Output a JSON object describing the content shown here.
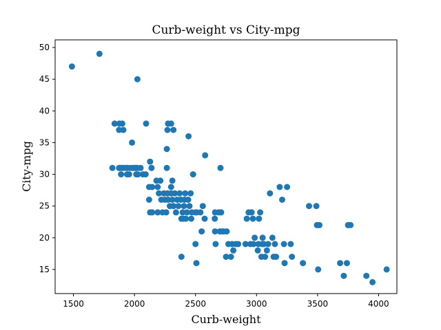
{
  "chart_data": {
    "type": "scatter",
    "title": "Curb-weight vs City-mpg",
    "xlabel": "Curb-weight",
    "ylabel": "City-mpg",
    "xlim": [
      1350,
      4150
    ],
    "ylim": [
      11.2,
      51.2
    ],
    "xticks": [
      1500,
      2000,
      2500,
      3000,
      3500,
      4000
    ],
    "yticks": [
      15,
      20,
      25,
      30,
      35,
      40,
      45,
      50
    ],
    "grid": false,
    "marker_color": "#1f77b4",
    "points": [
      [
        1488,
        47
      ],
      [
        1713,
        49
      ],
      [
        2024,
        45
      ],
      [
        1819,
        31
      ],
      [
        1874,
        31
      ],
      [
        1876,
        31
      ],
      [
        1889,
        31
      ],
      [
        1890,
        30
      ],
      [
        1900,
        31
      ],
      [
        1918,
        31
      ],
      [
        1938,
        31
      ],
      [
        1940,
        30
      ],
      [
        1944,
        31
      ],
      [
        1956,
        30
      ],
      [
        1967,
        31
      ],
      [
        1989,
        31
      ],
      [
        2004,
        31
      ],
      [
        2010,
        31
      ],
      [
        2015,
        30
      ],
      [
        2017,
        31
      ],
      [
        2024,
        31
      ],
      [
        2028,
        30
      ],
      [
        2050,
        31
      ],
      [
        2069,
        30
      ],
      [
        2091,
        30
      ],
      [
        1837,
        38
      ],
      [
        1874,
        37
      ],
      [
        1876,
        38
      ],
      [
        1900,
        38
      ],
      [
        1909,
        37
      ],
      [
        1980,
        35
      ],
      [
        2095,
        38
      ],
      [
        2270,
        37
      ],
      [
        2275,
        38
      ],
      [
        2300,
        38
      ],
      [
        2319,
        37
      ],
      [
        2265,
        34
      ],
      [
        2443,
        36
      ],
      [
        2579,
        33
      ],
      [
        2128,
        32
      ],
      [
        2140,
        31
      ],
      [
        2265,
        31
      ],
      [
        2120,
        28
      ],
      [
        2145,
        28
      ],
      [
        2180,
        29
      ],
      [
        2190,
        28
      ],
      [
        2212,
        29
      ],
      [
        2300,
        28
      ],
      [
        2310,
        29
      ],
      [
        2128,
        24
      ],
      [
        2145,
        24
      ],
      [
        2120,
        26
      ],
      [
        2190,
        24
      ],
      [
        2200,
        27
      ],
      [
        2220,
        26
      ],
      [
        2230,
        24
      ],
      [
        2240,
        27
      ],
      [
        2250,
        26
      ],
      [
        2260,
        24
      ],
      [
        2270,
        27
      ],
      [
        2275,
        26
      ],
      [
        2290,
        25
      ],
      [
        2300,
        27
      ],
      [
        2310,
        26
      ],
      [
        2319,
        25
      ],
      [
        2330,
        27
      ],
      [
        2340,
        24
      ],
      [
        2350,
        26
      ],
      [
        2360,
        25
      ],
      [
        2370,
        27
      ],
      [
        2380,
        26
      ],
      [
        2385,
        23
      ],
      [
        2395,
        24
      ],
      [
        2400,
        23
      ],
      [
        2405,
        25
      ],
      [
        2410,
        26
      ],
      [
        2415,
        27
      ],
      [
        2420,
        23
      ],
      [
        2430,
        24
      ],
      [
        2440,
        26
      ],
      [
        2450,
        25
      ],
      [
        2460,
        27
      ],
      [
        2465,
        23
      ],
      [
        2470,
        24
      ],
      [
        2480,
        30
      ],
      [
        2500,
        24
      ],
      [
        2510,
        24
      ],
      [
        2540,
        24
      ],
      [
        2560,
        25
      ],
      [
        2575,
        23
      ],
      [
        2658,
        23
      ],
      [
        2660,
        24
      ],
      [
        2385,
        17
      ],
      [
        2500,
        19
      ],
      [
        2507,
        16
      ],
      [
        2550,
        21
      ],
      [
        2660,
        21
      ],
      [
        2665,
        19
      ],
      [
        2690,
        24
      ],
      [
        2700,
        21
      ],
      [
        2705,
        31
      ],
      [
        2710,
        24
      ],
      [
        2715,
        21
      ],
      [
        2730,
        21
      ],
      [
        2750,
        17
      ],
      [
        2755,
        21
      ],
      [
        2770,
        19
      ],
      [
        2790,
        17
      ],
      [
        2800,
        19
      ],
      [
        2810,
        18
      ],
      [
        2830,
        19
      ],
      [
        2850,
        19
      ],
      [
        2910,
        19
      ],
      [
        2920,
        23
      ],
      [
        2935,
        24
      ],
      [
        2950,
        19
      ],
      [
        2960,
        24
      ],
      [
        2970,
        23
      ],
      [
        2975,
        19
      ],
      [
        2985,
        20
      ],
      [
        3010,
        18
      ],
      [
        3015,
        19
      ],
      [
        3020,
        23
      ],
      [
        3030,
        24
      ],
      [
        3040,
        17
      ],
      [
        3045,
        19
      ],
      [
        3050,
        20
      ],
      [
        3060,
        19
      ],
      [
        3070,
        17
      ],
      [
        3085,
        18
      ],
      [
        3095,
        19
      ],
      [
        3110,
        27
      ],
      [
        3130,
        20
      ],
      [
        3140,
        17
      ],
      [
        3150,
        19
      ],
      [
        3160,
        17
      ],
      [
        3190,
        28
      ],
      [
        3210,
        26
      ],
      [
        3225,
        19
      ],
      [
        3230,
        16
      ],
      [
        3250,
        28
      ],
      [
        3280,
        19
      ],
      [
        3290,
        17
      ],
      [
        3380,
        16
      ],
      [
        3430,
        25
      ],
      [
        3490,
        25
      ],
      [
        3495,
        22
      ],
      [
        3505,
        15
      ],
      [
        3515,
        22
      ],
      [
        3685,
        16
      ],
      [
        3715,
        14
      ],
      [
        3740,
        16
      ],
      [
        3750,
        22
      ],
      [
        3770,
        22
      ],
      [
        3900,
        14
      ],
      [
        3950,
        13
      ],
      [
        4066,
        15
      ]
    ]
  }
}
